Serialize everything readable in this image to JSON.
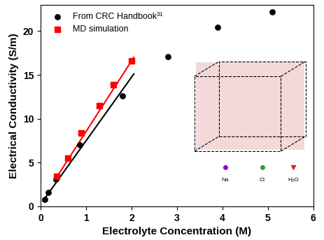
{
  "chart_data": {
    "type": "scatter",
    "x_label": "Electrolyte Concentration (M)",
    "y_label": "Electrical Conductivity (S/m)",
    "xlim": [
      0,
      6
    ],
    "xticks": [
      0,
      1,
      2,
      3,
      4,
      5,
      6
    ],
    "ylim": [
      0,
      23
    ],
    "yticks": [
      0,
      5,
      10,
      15,
      20
    ],
    "legend": "upper left",
    "annotations": [
      "Na",
      "Cl",
      "H₂O"
    ],
    "series": [
      {
        "name": "From CRC Handbook³¹",
        "type": "scatter",
        "color": "#000000",
        "marker": "o",
        "x": [
          0.086,
          0.17,
          0.34,
          0.86,
          1.8,
          2.8,
          3.9,
          5.1
        ],
        "values": [
          0.82,
          1.6,
          3.1,
          7.0,
          12.6,
          17.1,
          20.4,
          22.2
        ]
      },
      {
        "name": "MD simulation",
        "type": "scatter",
        "color": "#ff0000",
        "marker": "s",
        "x": [
          0.35,
          0.6,
          0.9,
          1.3,
          1.6,
          2.0
        ],
        "values": [
          3.4,
          5.5,
          8.4,
          11.5,
          13.9,
          16.6
        ]
      },
      {
        "type": "line",
        "color": "#000000",
        "line_style": "solid",
        "x": [
          0.05,
          2.05
        ],
        "values": [
          0.6,
          15.1
        ]
      },
      {
        "type": "line",
        "color": "#ff0000",
        "line_style": "solid",
        "x": [
          0.3,
          2.05
        ],
        "values": [
          2.9,
          17.0
        ]
      }
    ]
  }
}
